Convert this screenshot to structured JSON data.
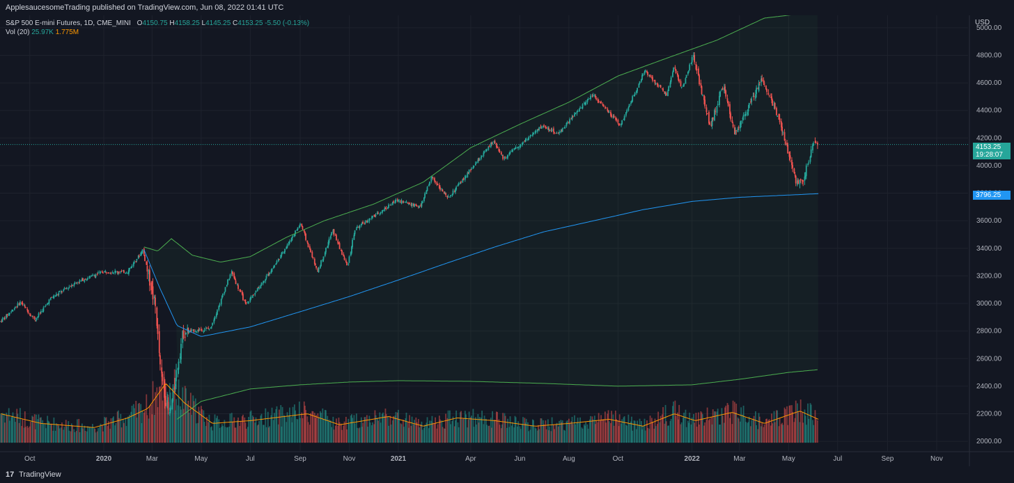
{
  "header": {
    "published_text": "ApplesaucesomeTrading published on TradingView.com, Jun 08, 2022 01:41 UTC"
  },
  "legend": {
    "symbol": "S&P 500 E-mini Futures, 1D, CME_MINI",
    "open_label": "O",
    "open": "4150.75",
    "high_label": "H",
    "high": "4158.25",
    "low_label": "L",
    "low": "4145.25",
    "close_label": "C",
    "close": "4153.25",
    "change": "-5.50 (-0.13%)",
    "vol_label": "Vol (20)",
    "vol_value": "25.97K",
    "vol_ma": "1.775M"
  },
  "axis": {
    "currency": "USD",
    "last_price": "4153.25",
    "countdown": "19:28:07",
    "ma_price": "3796.25"
  },
  "footer": {
    "brand": "TradingView",
    "logo_glyph": "17"
  },
  "colors": {
    "background": "#131722",
    "up": "#26a69a",
    "down": "#ef5350",
    "envelope": "#4caf50",
    "ma": "#2196f3",
    "volume_ma": "#ff9800"
  },
  "chart_data": {
    "type": "candlestick",
    "y_ticks": [
      2000,
      2200,
      2400,
      2600,
      2800,
      3000,
      3200,
      3400,
      3600,
      3800,
      4000,
      4200,
      4400,
      4600,
      4800,
      5000
    ],
    "y_tick_labels": [
      "2000.00",
      "2200.00",
      "2400.00",
      "2600.00",
      "2800.00",
      "3000.00",
      "3200.00",
      "3400.00",
      "3600.00",
      "3800.00",
      "4000.00",
      "4200.00",
      "4400.00",
      "4600.00",
      "4800.00",
      "5000.00"
    ],
    "ylim": [
      1930,
      5090
    ],
    "x_labels": [
      "Oct",
      "2020",
      "Mar",
      "May",
      "Jul",
      "Sep",
      "Nov",
      "2021",
      "Apr",
      "Jun",
      "Aug",
      "Oct",
      "2022",
      "Mar",
      "May",
      "Jul",
      "Sep",
      "Nov"
    ],
    "x_label_dates": [
      "2019-10-01",
      "2020-01-01",
      "2020-03-01",
      "2020-05-01",
      "2020-07-01",
      "2020-09-01",
      "2020-11-01",
      "2021-01-01",
      "2021-04-01",
      "2021-06-01",
      "2021-08-01",
      "2021-10-01",
      "2022-01-01",
      "2022-03-01",
      "2022-05-01",
      "2022-07-01",
      "2022-09-01",
      "2022-11-01"
    ],
    "xlim": [
      "2019-08-25",
      "2022-12-10"
    ],
    "price_path": [
      [
        "2019-08-26",
        2870
      ],
      [
        "2019-09-20",
        3010
      ],
      [
        "2019-10-08",
        2880
      ],
      [
        "2019-10-28",
        3040
      ],
      [
        "2019-11-27",
        3150
      ],
      [
        "2019-12-31",
        3230
      ],
      [
        "2020-01-31",
        3230
      ],
      [
        "2020-02-19",
        3390
      ],
      [
        "2020-03-06",
        2970
      ],
      [
        "2020-03-12",
        2500
      ],
      [
        "2020-03-23",
        2180
      ],
      [
        "2020-04-09",
        2790
      ],
      [
        "2020-05-13",
        2820
      ],
      [
        "2020-06-08",
        3230
      ],
      [
        "2020-06-26",
        2990
      ],
      [
        "2020-07-31",
        3270
      ],
      [
        "2020-09-02",
        3580
      ],
      [
        "2020-09-23",
        3230
      ],
      [
        "2020-10-12",
        3530
      ],
      [
        "2020-10-30",
        3270
      ],
      [
        "2020-11-09",
        3540
      ],
      [
        "2020-12-31",
        3750
      ],
      [
        "2021-01-29",
        3700
      ],
      [
        "2021-02-12",
        3920
      ],
      [
        "2021-03-04",
        3760
      ],
      [
        "2021-04-30",
        4180
      ],
      [
        "2021-05-12",
        4050
      ],
      [
        "2021-06-30",
        4290
      ],
      [
        "2021-07-19",
        4230
      ],
      [
        "2021-08-31",
        4520
      ],
      [
        "2021-10-04",
        4290
      ],
      [
        "2021-11-04",
        4690
      ],
      [
        "2021-12-01",
        4510
      ],
      [
        "2021-12-10",
        4710
      ],
      [
        "2021-12-20",
        4560
      ],
      [
        "2022-01-03",
        4790
      ],
      [
        "2022-01-24",
        4280
      ],
      [
        "2022-02-09",
        4580
      ],
      [
        "2022-02-24",
        4220
      ],
      [
        "2022-03-29",
        4630
      ],
      [
        "2022-04-13",
        4440
      ],
      [
        "2022-04-22",
        4280
      ],
      [
        "2022-05-12",
        3870
      ],
      [
        "2022-05-20",
        3900
      ],
      [
        "2022-06-02",
        4170
      ],
      [
        "2022-06-07",
        4153.25
      ]
    ],
    "upper_envelope": [
      [
        "2020-02-20",
        3410
      ],
      [
        "2020-03-08",
        3380
      ],
      [
        "2020-03-25",
        3470
      ],
      [
        "2020-04-20",
        3350
      ],
      [
        "2020-05-25",
        3300
      ],
      [
        "2020-07-01",
        3340
      ],
      [
        "2020-08-15",
        3480
      ],
      [
        "2020-10-01",
        3600
      ],
      [
        "2020-12-01",
        3720
      ],
      [
        "2021-02-01",
        3880
      ],
      [
        "2021-04-01",
        4130
      ],
      [
        "2021-06-01",
        4300
      ],
      [
        "2021-08-01",
        4460
      ],
      [
        "2021-10-01",
        4650
      ],
      [
        "2021-12-01",
        4780
      ],
      [
        "2022-02-01",
        4910
      ],
      [
        "2022-04-01",
        5070
      ],
      [
        "2022-05-15",
        5100
      ],
      [
        "2022-06-07",
        5095
      ]
    ],
    "lower_envelope": [
      [
        "2020-04-01",
        2160
      ],
      [
        "2020-05-01",
        2290
      ],
      [
        "2020-07-01",
        2380
      ],
      [
        "2020-09-01",
        2410
      ],
      [
        "2020-11-01",
        2430
      ],
      [
        "2021-01-01",
        2440
      ],
      [
        "2021-04-01",
        2435
      ],
      [
        "2021-07-01",
        2420
      ],
      [
        "2021-10-01",
        2400
      ],
      [
        "2022-01-01",
        2410
      ],
      [
        "2022-03-01",
        2450
      ],
      [
        "2022-05-01",
        2500
      ],
      [
        "2022-06-07",
        2520
      ]
    ],
    "moving_average": [
      [
        "2020-02-20",
        3390
      ],
      [
        "2020-03-10",
        3120
      ],
      [
        "2020-04-01",
        2840
      ],
      [
        "2020-05-01",
        2760
      ],
      [
        "2020-07-01",
        2830
      ],
      [
        "2020-09-01",
        2940
      ],
      [
        "2020-11-01",
        3050
      ],
      [
        "2021-01-01",
        3170
      ],
      [
        "2021-03-01",
        3290
      ],
      [
        "2021-05-01",
        3410
      ],
      [
        "2021-07-01",
        3520
      ],
      [
        "2021-09-01",
        3600
      ],
      [
        "2021-11-01",
        3680
      ],
      [
        "2022-01-01",
        3740
      ],
      [
        "2022-03-01",
        3770
      ],
      [
        "2022-06-07",
        3796.25
      ]
    ],
    "volume_ma_path": [
      [
        "2019-08-26",
        2200
      ],
      [
        "2019-10-15",
        2130
      ],
      [
        "2019-12-20",
        2100
      ],
      [
        "2020-01-31",
        2170
      ],
      [
        "2020-02-25",
        2240
      ],
      [
        "2020-03-18",
        2420
      ],
      [
        "2020-04-10",
        2280
      ],
      [
        "2020-05-15",
        2130
      ],
      [
        "2020-07-01",
        2150
      ],
      [
        "2020-09-10",
        2200
      ],
      [
        "2020-10-20",
        2120
      ],
      [
        "2020-12-20",
        2180
      ],
      [
        "2021-02-01",
        2110
      ],
      [
        "2021-03-15",
        2170
      ],
      [
        "2021-05-01",
        2150
      ],
      [
        "2021-06-20",
        2110
      ],
      [
        "2021-08-01",
        2130
      ],
      [
        "2021-09-20",
        2160
      ],
      [
        "2021-11-01",
        2110
      ],
      [
        "2021-12-10",
        2200
      ],
      [
        "2022-01-05",
        2150
      ],
      [
        "2022-02-20",
        2210
      ],
      [
        "2022-04-01",
        2130
      ],
      [
        "2022-05-15",
        2220
      ],
      [
        "2022-06-07",
        2160
      ]
    ]
  }
}
